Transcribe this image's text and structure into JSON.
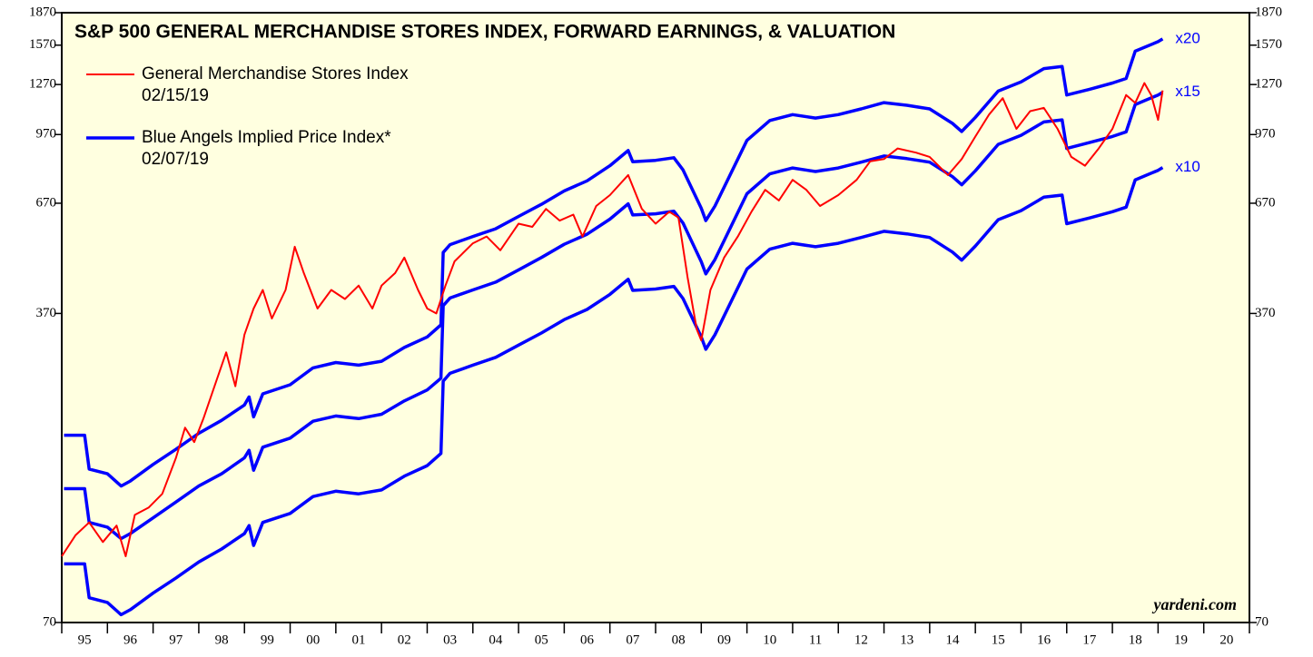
{
  "chart_data": {
    "type": "line",
    "title": "S&P 500 GENERAL MERCHANDISE STORES INDEX, FORWARD EARNINGS, & VALUATION",
    "log_scale": true,
    "ylim": [
      70,
      1870
    ],
    "yticks": [
      70,
      370,
      670,
      970,
      1270,
      1570,
      1870
    ],
    "xlim": [
      1995,
      2021
    ],
    "xticks": [
      1995,
      1996,
      1997,
      1998,
      1999,
      2000,
      2001,
      2002,
      2003,
      2004,
      2005,
      2006,
      2007,
      2008,
      2009,
      2010,
      2011,
      2012,
      2013,
      2014,
      2015,
      2016,
      2017,
      2018,
      2019,
      2020,
      2021
    ],
    "xtick_labels": [
      "95",
      "96",
      "97",
      "98",
      "99",
      "00",
      "01",
      "02",
      "03",
      "04",
      "05",
      "06",
      "07",
      "08",
      "09",
      "10",
      "11",
      "12",
      "13",
      "14",
      "15",
      "16",
      "17",
      "18",
      "19",
      "20"
    ],
    "legend": "top-left",
    "annotation": "yardeni.com",
    "series": [
      {
        "name": "General Merchandise Stores Index",
        "date": "02/15/19",
        "color": "#ff0000",
        "x": [
          1995.0,
          1995.3,
          1995.6,
          1995.9,
          1996.2,
          1996.4,
          1996.6,
          1996.9,
          1997.2,
          1997.5,
          1997.7,
          1997.9,
          1998.1,
          1998.4,
          1998.6,
          1998.8,
          1999.0,
          1999.2,
          1999.4,
          1999.6,
          1999.9,
          2000.1,
          2000.3,
          2000.6,
          2000.9,
          2001.2,
          2001.5,
          2001.8,
          2002.0,
          2002.3,
          2002.5,
          2002.8,
          2003.0,
          2003.2,
          2003.4,
          2003.6,
          2004.0,
          2004.3,
          2004.6,
          2005.0,
          2005.3,
          2005.6,
          2005.9,
          2006.2,
          2006.4,
          2006.7,
          2007.0,
          2007.4,
          2007.7,
          2008.0,
          2008.3,
          2008.5,
          2008.7,
          2008.9,
          2009.0,
          2009.2,
          2009.5,
          2009.8,
          2010.1,
          2010.4,
          2010.7,
          2011.0,
          2011.3,
          2011.6,
          2012.0,
          2012.4,
          2012.7,
          2013.0,
          2013.3,
          2013.7,
          2014.0,
          2014.4,
          2014.7,
          2015.0,
          2015.3,
          2015.6,
          2015.9,
          2016.2,
          2016.5,
          2016.8,
          2017.1,
          2017.4,
          2017.7,
          2018.0,
          2018.3,
          2018.5,
          2018.7,
          2018.85,
          2019.0,
          2019.1
        ],
        "values": [
          100,
          112,
          120,
          108,
          118,
          100,
          125,
          130,
          140,
          170,
          200,
          185,
          210,
          260,
          300,
          250,
          330,
          380,
          420,
          360,
          420,
          530,
          460,
          380,
          420,
          400,
          430,
          380,
          430,
          460,
          500,
          420,
          380,
          370,
          430,
          490,
          540,
          560,
          520,
          600,
          590,
          650,
          610,
          630,
          560,
          660,
          700,
          780,
          650,
          600,
          640,
          620,
          450,
          340,
          320,
          420,
          500,
          560,
          640,
          720,
          680,
          760,
          720,
          660,
          700,
          760,
          840,
          850,
          900,
          880,
          860,
          780,
          850,
          960,
          1080,
          1180,
          1000,
          1100,
          1120,
          1000,
          860,
          820,
          900,
          1000,
          1200,
          1150,
          1280,
          1200,
          1050,
          1230
        ]
      },
      {
        "name": "Blue Angels Implied Price Index*",
        "date": "02/07/19",
        "color": "#0000ff",
        "label": "x20",
        "x": [
          1995.05,
          1995.5,
          1995.6,
          1996.0,
          1996.3,
          1996.5,
          1997.0,
          1997.5,
          1998.0,
          1998.5,
          1999.0,
          1999.1,
          1999.2,
          1999.4,
          2000.0,
          2000.5,
          2001.0,
          2001.5,
          2002.0,
          2002.5,
          2003.0,
          2003.3,
          2003.35,
          2003.5,
          2004.0,
          2004.5,
          2005.0,
          2005.5,
          2006.0,
          2006.5,
          2007.0,
          2007.4,
          2007.5,
          2008.0,
          2008.4,
          2008.6,
          2009.0,
          2009.1,
          2009.3,
          2010.0,
          2010.5,
          2011.0,
          2011.5,
          2012.0,
          2012.5,
          2013.0,
          2013.5,
          2014.0,
          2014.5,
          2014.7,
          2015.0,
          2015.5,
          2016.0,
          2016.5,
          2016.9,
          2017.0,
          2017.5,
          2018.0,
          2018.3,
          2018.5,
          2019.0,
          2019.1
        ],
        "values": [
          192,
          192,
          160,
          156,
          146,
          150,
          164,
          178,
          194,
          208,
          226,
          236,
          212,
          240,
          252,
          276,
          284,
          280,
          286,
          308,
          326,
          348,
          514,
          536,
          560,
          584,
          624,
          666,
          716,
          756,
          820,
          890,
          838,
          844,
          856,
          802,
          652,
          610,
          660,
          940,
          1046,
          1080,
          1060,
          1080,
          1114,
          1152,
          1136,
          1114,
          1030,
          986,
          1064,
          1226,
          1288,
          1384,
          1400,
          1200,
          1238,
          1280,
          1312,
          1520,
          1600,
          1624
        ]
      },
      {
        "color": "#0000ff",
        "label": "x15",
        "x": [
          1995.05,
          1995.5,
          1995.6,
          1996.0,
          1996.3,
          1996.5,
          1997.0,
          1997.5,
          1998.0,
          1998.5,
          1999.0,
          1999.1,
          1999.2,
          1999.4,
          2000.0,
          2000.5,
          2001.0,
          2001.5,
          2002.0,
          2002.5,
          2003.0,
          2003.3,
          2003.35,
          2003.5,
          2004.0,
          2004.5,
          2005.0,
          2005.5,
          2006.0,
          2006.5,
          2007.0,
          2007.4,
          2007.5,
          2008.0,
          2008.4,
          2008.6,
          2009.0,
          2009.1,
          2009.3,
          2010.0,
          2010.5,
          2011.0,
          2011.5,
          2012.0,
          2012.5,
          2013.0,
          2013.5,
          2014.0,
          2014.5,
          2014.7,
          2015.0,
          2015.5,
          2016.0,
          2016.5,
          2016.9,
          2017.0,
          2017.5,
          2018.0,
          2018.3,
          2018.5,
          2019.0,
          2019.1
        ],
        "values": [
          144,
          144,
          120,
          117,
          110,
          113,
          123,
          134,
          146,
          156,
          170,
          177,
          159,
          180,
          189,
          207,
          213,
          210,
          215,
          231,
          245,
          261,
          386,
          402,
          420,
          438,
          468,
          500,
          537,
          567,
          615,
          668,
          629,
          633,
          642,
          602,
          489,
          458,
          495,
          705,
          785,
          810,
          795,
          810,
          836,
          864,
          852,
          836,
          773,
          740,
          798,
          920,
          966,
          1038,
          1050,
          900,
          929,
          960,
          984,
          1140,
          1200,
          1218
        ]
      },
      {
        "color": "#0000ff",
        "label": "x10",
        "x": [
          1995.05,
          1995.5,
          1995.6,
          1996.0,
          1996.3,
          1996.5,
          1997.0,
          1997.5,
          1998.0,
          1998.5,
          1999.0,
          1999.1,
          1999.2,
          1999.4,
          2000.0,
          2000.5,
          2001.0,
          2001.5,
          2002.0,
          2002.5,
          2003.0,
          2003.3,
          2003.35,
          2003.5,
          2004.0,
          2004.5,
          2005.0,
          2005.5,
          2006.0,
          2006.5,
          2007.0,
          2007.4,
          2007.5,
          2008.0,
          2008.4,
          2008.6,
          2009.0,
          2009.1,
          2009.3,
          2010.0,
          2010.5,
          2011.0,
          2011.5,
          2012.0,
          2012.5,
          2013.0,
          2013.5,
          2014.0,
          2014.5,
          2014.7,
          2015.0,
          2015.5,
          2016.0,
          2016.5,
          2016.9,
          2017.0,
          2017.5,
          2018.0,
          2018.3,
          2018.5,
          2019.0,
          2019.1
        ],
        "values": [
          96,
          96,
          80,
          78,
          73,
          75,
          82,
          89,
          97,
          104,
          113,
          118,
          106,
          120,
          126,
          138,
          142,
          140,
          143,
          154,
          163,
          174,
          257,
          268,
          280,
          292,
          312,
          333,
          358,
          378,
          410,
          445,
          419,
          422,
          428,
          401,
          326,
          305,
          330,
          470,
          523,
          540,
          530,
          540,
          557,
          576,
          568,
          557,
          515,
          493,
          532,
          613,
          644,
          692,
          700,
          600,
          619,
          640,
          656,
          760,
          800,
          812
        ]
      }
    ]
  }
}
